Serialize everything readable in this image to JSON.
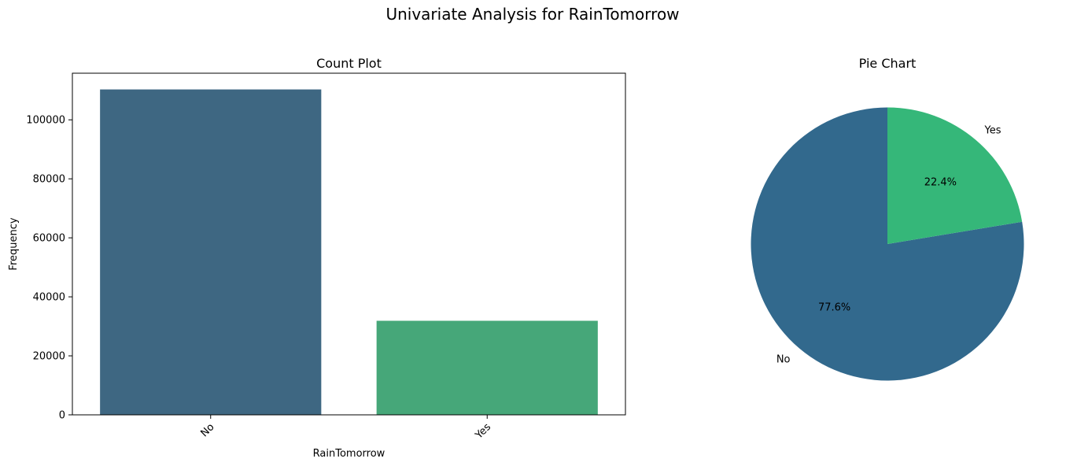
{
  "figure": {
    "title": "Univariate Analysis for RainTomorrow"
  },
  "chart_data": [
    {
      "type": "bar",
      "title": "Count Plot",
      "xlabel": "RainTomorrow",
      "ylabel": "Frequency",
      "categories": [
        "No",
        "Yes"
      ],
      "values": [
        110300,
        31880
      ],
      "colors": [
        "#3e6782",
        "#46a779"
      ],
      "ylim": [
        0,
        115800
      ],
      "yticks": [
        0,
        20000,
        40000,
        60000,
        80000,
        100000
      ],
      "ytick_labels": [
        "0",
        "20000",
        "40000",
        "60000",
        "80000",
        "100000"
      ],
      "xtick_rotation": 45,
      "grid": false,
      "legend": "none"
    },
    {
      "type": "pie",
      "title": "Pie Chart",
      "labels": [
        "No",
        "Yes"
      ],
      "values": [
        77.6,
        22.4
      ],
      "autopct_labels": [
        "77.6%",
        "22.4%"
      ],
      "colors": [
        "#32698d",
        "#35b779"
      ],
      "startangle": 90,
      "legend": "none"
    }
  ]
}
